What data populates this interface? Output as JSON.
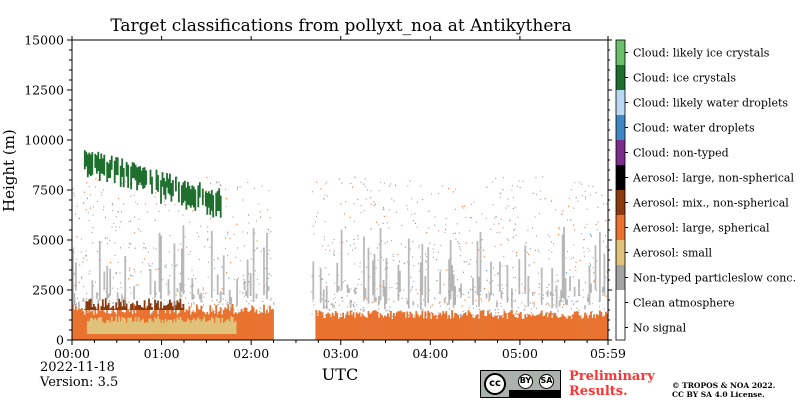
{
  "chart_data": {
    "type": "heatmap",
    "title": "Target classifications from pollyxt_noa at Antikythera",
    "xlabel": "UTC",
    "ylabel": "Height (m)",
    "x_ticks": [
      "00:00",
      "01:00",
      "02:00",
      "03:00",
      "04:00",
      "05:00",
      "05:59"
    ],
    "x_range_minutes": [
      0,
      359
    ],
    "y_ticks": [
      0,
      2500,
      5000,
      7500,
      10000,
      12500,
      15000
    ],
    "ylim": [
      0,
      15000
    ],
    "legend": [
      {
        "label": "Cloud: likely ice crystals",
        "color": "#6bbf6b"
      },
      {
        "label": "Cloud: ice crystals",
        "color": "#1f6f2f"
      },
      {
        "label": "Cloud: likely water droplets",
        "color": "#b9d9f2"
      },
      {
        "label": "Cloud: water droplets",
        "color": "#3f88c5"
      },
      {
        "label": "Cloud: non-typed",
        "color": "#7b2d8e"
      },
      {
        "label": "Aerosol: large, non-spherical",
        "color": "#000000"
      },
      {
        "label": "Aerosol: mix., non-spherical",
        "color": "#8b3a0e"
      },
      {
        "label": "Aerosol: large, spherical",
        "color": "#e8722e"
      },
      {
        "label": "Aerosol: small",
        "color": "#e0c27a"
      },
      {
        "label": "Non-typed particleslow conc.",
        "color": "#a3a3a3"
      },
      {
        "label": "Clean atmosphere",
        "color": "#ffffff"
      },
      {
        "label": "No signal",
        "color": "#ffffff"
      }
    ],
    "regions": [
      {
        "class": "Aerosol: large, spherical",
        "x_min": [
          0,
          135
        ],
        "height_m": [
          0,
          1800
        ]
      },
      {
        "class": "Aerosol: large, spherical",
        "x_min": [
          163,
          359
        ],
        "height_m": [
          0,
          1500
        ]
      },
      {
        "class": "Aerosol: small",
        "x_min": [
          10,
          110
        ],
        "height_m": [
          300,
          1200
        ]
      },
      {
        "class": "Aerosol: mix., non-spherical",
        "x_min": [
          8,
          75
        ],
        "height_m": [
          1500,
          2100
        ]
      },
      {
        "class": "Cloud: ice crystals",
        "x_min": [
          8,
          100
        ],
        "height_m": [
          7200,
          9500
        ]
      },
      {
        "class": "Non-typed particleslow conc.",
        "x_min": [
          0,
          359
        ],
        "height_m": [
          1500,
          6500
        ]
      }
    ]
  },
  "footer": {
    "date": "2022-11-18",
    "version": "Version: 3.5",
    "preliminary": [
      "Preliminary",
      "Results."
    ],
    "copyright": [
      "© TROPOS & NOA 2022.",
      "CC BY SA 4.0 License."
    ],
    "cc_badge": {
      "cc": "cc",
      "by": "BY",
      "sa": "SA"
    }
  }
}
